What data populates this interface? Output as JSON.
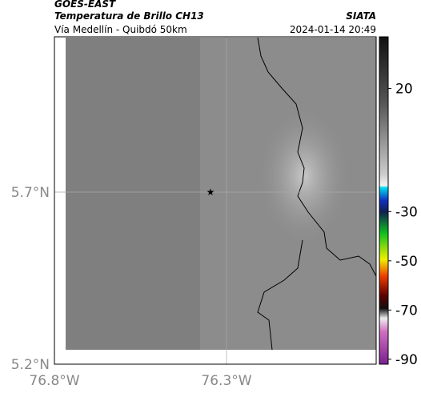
{
  "header": {
    "source": "GOES-EAST",
    "title": "Temperatura de Brillo CH13",
    "org": "SIATA",
    "subtitle": "Vía Medellín - Quibdó 50km",
    "datetime": "2024-01-14 20:49"
  },
  "map": {
    "lat_labels": [
      "5.7°N",
      "5.2°N"
    ],
    "lon_labels": [
      "76.8°W",
      "76.3°W"
    ]
  },
  "colorbar": {
    "clim": [
      -92,
      41
    ],
    "ticks": [
      20,
      -30,
      -50,
      -70,
      -90
    ]
  }
}
